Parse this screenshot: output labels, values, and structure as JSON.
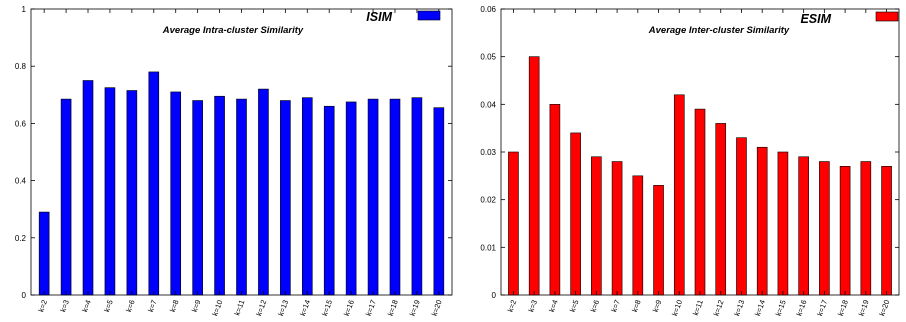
{
  "chart_data": [
    {
      "type": "bar",
      "title": "Average Intra-cluster Similarity",
      "legend": "top-right",
      "grid": false,
      "categories": [
        "k=2",
        "k=3",
        "k=4",
        "k=5",
        "k=6",
        "k=7",
        "k=8",
        "k=9",
        "k=10",
        "k=11",
        "k=12",
        "k=13",
        "k=14",
        "k=15",
        "k=16",
        "k=17",
        "k=18",
        "k=19",
        "k=20"
      ],
      "series": [
        {
          "name": "ISIM",
          "color": "#0000ff",
          "values": [
            0.29,
            0.685,
            0.75,
            0.725,
            0.715,
            0.78,
            0.71,
            0.68,
            0.695,
            0.685,
            0.72,
            0.68,
            0.69,
            0.66,
            0.675,
            0.685,
            0.685,
            0.69,
            0.655
          ]
        }
      ],
      "ylim": [
        0,
        1
      ],
      "yticks": [
        "0",
        "0.2",
        "0.4",
        "0.6",
        "0.8",
        "1"
      ]
    },
    {
      "type": "bar",
      "title": "Average Inter-cluster Similarity",
      "legend": "top-right",
      "grid": false,
      "categories": [
        "k=2",
        "k=3",
        "k=4",
        "k=5",
        "k=6",
        "k=7",
        "k=8",
        "k=9",
        "k=10",
        "k=11",
        "k=12",
        "k=13",
        "k=14",
        "k=15",
        "k=16",
        "k=17",
        "k=18",
        "k=19",
        "k=20"
      ],
      "series": [
        {
          "name": "ESIM",
          "color": "#ff0000",
          "values": [
            0.03,
            0.05,
            0.04,
            0.034,
            0.029,
            0.028,
            0.025,
            0.023,
            0.042,
            0.039,
            0.036,
            0.033,
            0.031,
            0.03,
            0.029,
            0.028,
            0.027,
            0.028,
            0.027
          ]
        }
      ],
      "ylim": [
        0,
        0.06
      ],
      "yticks": [
        "0",
        "0.01",
        "0.02",
        "0.03",
        "0.04",
        "0.05",
        "0.06"
      ]
    }
  ]
}
